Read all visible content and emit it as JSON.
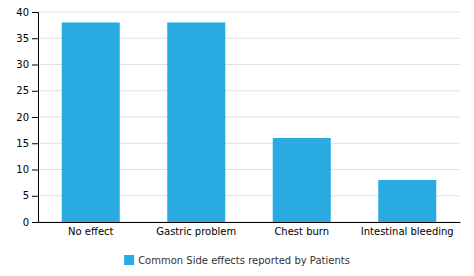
{
  "chart_data": {
    "type": "bar",
    "categories": [
      "No effect",
      "Gastric problem",
      "Chest burn",
      "Intestinal bleeding"
    ],
    "series": [
      {
        "name": "Common Side effects reported by Patients",
        "color": "#29ABE2",
        "values": [
          38,
          38,
          16,
          8
        ]
      }
    ],
    "ylim": [
      0,
      40
    ],
    "yticks": [
      0,
      5,
      10,
      15,
      20,
      25,
      30,
      35,
      40
    ],
    "grid": true,
    "legend": "bottom"
  }
}
